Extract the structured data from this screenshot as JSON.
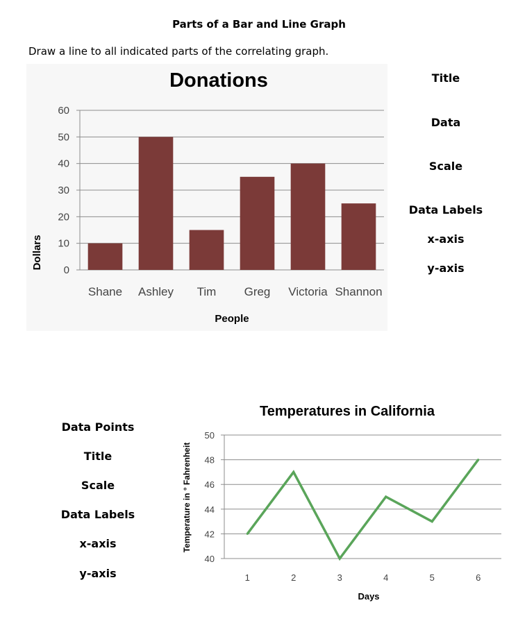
{
  "worksheet": {
    "heading": "Parts of a Bar and Line Graph",
    "instructions": "Draw a line to all indicated parts of the correlating graph.",
    "bar_part_labels": [
      "Title",
      "Data",
      "Scale",
      "Data Labels",
      "x-axis",
      "y-axis"
    ],
    "line_part_labels": [
      "Data Points",
      "Title",
      "Scale",
      "Data Labels",
      "x-axis",
      "y-axis"
    ]
  },
  "colors": {
    "bar_fill": "#7b3a38",
    "line_stroke": "#5aa55a",
    "grid": "#8c8c8c",
    "chart_bg": "#f7f7f7"
  },
  "chart_data": [
    {
      "type": "bar",
      "title": "Donations",
      "xlabel": "People",
      "ylabel": "Dollars",
      "categories": [
        "Shane",
        "Ashley",
        "Tim",
        "Greg",
        "Victoria",
        "Shannon"
      ],
      "values": [
        10,
        50,
        15,
        35,
        40,
        25
      ],
      "ylim": [
        0,
        60
      ],
      "yticks": [
        0,
        10,
        20,
        30,
        40,
        50,
        60
      ],
      "grid": true
    },
    {
      "type": "line",
      "title": "Temperatures in California",
      "xlabel": "Days",
      "ylabel": "Temperature in ° Fahrenheit",
      "x": [
        1,
        2,
        3,
        4,
        5,
        6
      ],
      "values": [
        42,
        47,
        40,
        45,
        43,
        48
      ],
      "ylim": [
        40,
        50
      ],
      "yticks": [
        40,
        42,
        44,
        46,
        48,
        50
      ],
      "grid": true
    }
  ]
}
